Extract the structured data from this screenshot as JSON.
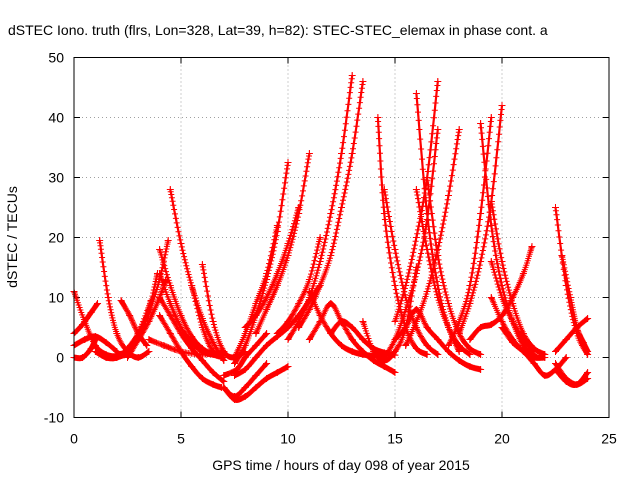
{
  "chart_data": {
    "type": "scatter",
    "title": "dSTEC Iono. truth (flrs, Lon=328, Lat=39, h=82): STEC-STEC_elemax in phase cont. a",
    "xlabel": "GPS time / hours of day 098 of year 2015",
    "ylabel": "dSTEC  / TECUs",
    "xlim": [
      0,
      25
    ],
    "ylim": [
      -10,
      50
    ],
    "xticks": [
      0,
      5,
      10,
      15,
      20,
      25
    ],
    "yticks": [
      -10,
      0,
      10,
      20,
      30,
      40,
      50
    ],
    "xtick_labels": [
      "0",
      "5",
      "10",
      "15",
      "20",
      "25"
    ],
    "ytick_labels": [
      "-10",
      "0",
      "10",
      "20",
      "30",
      "40",
      "50"
    ],
    "grid": true,
    "marker": "plus",
    "color": "#ff0000",
    "series": [
      {
        "x": [
          0.0,
          0.5,
          1.0,
          1.5,
          2.0,
          2.5
        ],
        "y": [
          11,
          6,
          2,
          0.5,
          0.2,
          0.5
        ]
      },
      {
        "x": [
          0.0,
          0.4,
          0.8,
          1.1
        ],
        "y": [
          4,
          5.5,
          7.5,
          9
        ]
      },
      {
        "x": [
          0.0,
          0.5,
          1.0,
          1.5,
          2.0
        ],
        "y": [
          2,
          3,
          3.5,
          2.5,
          1
        ]
      },
      {
        "x": [
          1.2,
          1.6,
          2.0,
          2.5,
          3.0,
          3.5
        ],
        "y": [
          19.5,
          10,
          4,
          1,
          0,
          1
        ]
      },
      {
        "x": [
          0.0,
          0.4,
          0.8,
          1.0
        ],
        "y": [
          0,
          0,
          1.5,
          3
        ]
      },
      {
        "x": [
          1.0,
          1.5,
          2.0,
          2.5,
          3.0,
          3.6
        ],
        "y": [
          1,
          0,
          0,
          1,
          4,
          9.5
        ]
      },
      {
        "x": [
          1.5,
          2.0,
          2.5,
          3.0,
          3.5,
          3.9
        ],
        "y": [
          0,
          0,
          1.5,
          4,
          8,
          14
        ]
      },
      {
        "x": [
          2.2,
          2.6,
          3.0,
          3.4
        ],
        "y": [
          9.5,
          7,
          4,
          2
        ]
      },
      {
        "x": [
          2.0,
          2.5,
          3.0,
          3.5,
          4.0,
          4.3
        ],
        "y": [
          0.5,
          1,
          3,
          6,
          10,
          13
        ]
      },
      {
        "x": [
          2.5,
          3.0,
          3.5,
          4.0,
          4.4
        ],
        "y": [
          0,
          3,
          7.5,
          13,
          19.5
        ]
      },
      {
        "x": [
          4.0,
          4.5,
          5.0,
          5.5,
          6.0,
          6.5,
          7.0
        ],
        "y": [
          14,
          9,
          5,
          2.5,
          1,
          0.5,
          0.8
        ]
      },
      {
        "x": [
          4.0,
          4.5,
          5.0,
          5.5,
          6.0,
          6.5,
          7.0
        ],
        "y": [
          18,
          12,
          7,
          3.5,
          1.5,
          0.5,
          0
        ]
      },
      {
        "x": [
          4.0,
          4.5,
          5.0,
          5.5,
          6.0,
          6.5,
          7.0
        ],
        "y": [
          10,
          7,
          4,
          1.5,
          -0.5,
          -2.5,
          -4
        ]
      },
      {
        "x": [
          4.0,
          4.5,
          5.0,
          5.5,
          6.0,
          6.5,
          6.9
        ],
        "y": [
          7,
          4,
          1,
          -1.5,
          -3.5,
          -4.5,
          -5
        ]
      },
      {
        "x": [
          4.5,
          5.0,
          5.5,
          6.0,
          6.5,
          7.0
        ],
        "y": [
          28,
          19,
          12,
          6.5,
          2.5,
          -0.5
        ]
      },
      {
        "x": [
          5.5,
          6.0,
          6.5,
          7.0
        ],
        "y": [
          12,
          5,
          1,
          0.3
        ]
      },
      {
        "x": [
          6.0,
          6.5,
          7.0,
          7.5,
          8.0
        ],
        "y": [
          15.5,
          6,
          1,
          0,
          1
        ]
      },
      {
        "x": [
          3.5,
          4.2,
          5.0,
          6.0,
          7.0
        ],
        "y": [
          3,
          2,
          1,
          0.5,
          1
        ]
      },
      {
        "x": [
          7.0,
          7.5,
          8.0,
          8.5,
          9.0
        ],
        "y": [
          -5,
          -6.5,
          -5,
          -3,
          -1
        ]
      },
      {
        "x": [
          7.0,
          7.6,
          8.0,
          8.5,
          9.0
        ],
        "y": [
          -3,
          -2,
          0,
          2,
          4
        ]
      },
      {
        "x": [
          7.0,
          7.5,
          8.0,
          8.5,
          9.0,
          9.5,
          10.0
        ],
        "y": [
          -5,
          -7,
          -6.5,
          -5,
          -3.5,
          -2.5,
          -1.5
        ]
      },
      {
        "x": [
          7.5,
          8.0,
          8.5,
          9.0,
          9.5,
          10.0,
          10.5,
          11.0,
          11.5
        ],
        "y": [
          -3,
          -2,
          0,
          2,
          3.5,
          5,
          7,
          9.5,
          12
        ]
      },
      {
        "x": [
          7.5,
          8.0,
          8.5,
          9.0,
          9.5,
          10.0
        ],
        "y": [
          -1,
          2,
          7,
          13,
          21,
          32.5
        ]
      },
      {
        "x": [
          7.5,
          8.0,
          8.5,
          9.0,
          9.5
        ],
        "y": [
          0,
          4,
          9,
          14,
          22
        ]
      },
      {
        "x": [
          8.0,
          8.5,
          9.0,
          9.5,
          10.0,
          10.5
        ],
        "y": [
          5,
          7,
          10,
          14,
          19,
          25
        ]
      },
      {
        "x": [
          8.5,
          9.0,
          9.5,
          10.0,
          10.5,
          11.0
        ],
        "y": [
          4,
          8,
          12,
          17,
          24,
          34
        ]
      },
      {
        "x": [
          9.5,
          10.0,
          10.5,
          11.0,
          11.5
        ],
        "y": [
          4,
          6,
          9,
          13,
          20
        ]
      },
      {
        "x": [
          10.0,
          10.5,
          11.0,
          11.5,
          12.0,
          12.5,
          13.0
        ],
        "y": [
          3,
          6,
          10,
          16,
          24,
          34,
          47
        ]
      },
      {
        "x": [
          10.5,
          11.0,
          11.5,
          12.0,
          12.5,
          13.0,
          13.5
        ],
        "y": [
          5,
          8,
          12,
          17,
          25,
          34,
          46
        ]
      },
      {
        "x": [
          11.0,
          11.5,
          12.0,
          12.5,
          13.0,
          13.5,
          14.0,
          14.5
        ],
        "y": [
          11,
          7,
          4,
          2,
          1,
          0.5,
          0.3,
          0.5
        ]
      },
      {
        "x": [
          11.0,
          11.5,
          12.0,
          12.5,
          13.0,
          13.5,
          14.0,
          14.5,
          15.0
        ],
        "y": [
          3,
          6,
          9,
          6,
          3,
          1,
          -0.5,
          -1.5,
          -2.5
        ]
      },
      {
        "x": [
          12.0,
          12.5,
          13.0,
          13.5,
          14.0,
          14.5,
          15.0
        ],
        "y": [
          4,
          6,
          5,
          3,
          1.5,
          0.8,
          0.4
        ]
      },
      {
        "x": [
          13.5,
          14.0,
          14.5,
          15.0,
          15.5,
          16.0
        ],
        "y": [
          6,
          1,
          -0.5,
          1,
          5,
          15
        ]
      },
      {
        "x": [
          14.2,
          14.5,
          15.0,
          15.5,
          16.0,
          16.5
        ],
        "y": [
          40,
          24,
          12,
          5,
          1.5,
          0.5
        ]
      },
      {
        "x": [
          14.5,
          15.0,
          15.5,
          16.0,
          16.5,
          17.0
        ],
        "y": [
          28,
          18,
          10,
          5,
          2,
          0.5
        ]
      },
      {
        "x": [
          14.5,
          15.0,
          15.5,
          16.0,
          16.5,
          17.0
        ],
        "y": [
          0,
          3,
          8,
          14,
          23,
          38
        ]
      },
      {
        "x": [
          15.0,
          15.5,
          16.0,
          16.5,
          17.0
        ],
        "y": [
          6,
          12,
          20,
          30,
          46
        ]
      },
      {
        "x": [
          15.5,
          16.0,
          16.5,
          17.0,
          17.5,
          18.0
        ],
        "y": [
          2,
          6,
          11,
          18,
          27,
          38
        ]
      },
      {
        "x": [
          16.0,
          16.5,
          17.0,
          17.5,
          18.0
        ],
        "y": [
          44,
          24,
          12,
          5,
          1
        ]
      },
      {
        "x": [
          16.0,
          16.5,
          17.0,
          17.5,
          18.0,
          18.5
        ],
        "y": [
          28,
          18,
          10,
          5,
          2,
          0.5
        ]
      },
      {
        "x": [
          16.5,
          17.0,
          17.5,
          18.0,
          18.5,
          19.0
        ],
        "y": [
          30,
          17,
          9,
          4,
          1.5,
          0.5
        ]
      },
      {
        "x": [
          15.0,
          15.5,
          16.0,
          16.5,
          17.0,
          17.5,
          18.0,
          18.5,
          19.0
        ],
        "y": [
          3,
          5,
          8,
          5,
          3,
          1,
          -0.5,
          -1.5,
          -2
        ]
      },
      {
        "x": [
          17.5,
          18.0,
          18.5,
          19.0,
          19.5
        ],
        "y": [
          2,
          6,
          12,
          24,
          40
        ]
      },
      {
        "x": [
          18.0,
          18.5,
          19.0,
          19.5,
          20.0
        ],
        "y": [
          4,
          9,
          16,
          26,
          42
        ]
      },
      {
        "x": [
          19.0,
          19.5,
          20.0,
          20.5,
          21.0,
          21.5
        ],
        "y": [
          39,
          22,
          12,
          6,
          2,
          0.5
        ]
      },
      {
        "x": [
          19.5,
          20.0,
          20.5,
          21.0,
          21.5,
          22.0
        ],
        "y": [
          26,
          16,
          9,
          4,
          1.5,
          0.5
        ]
      },
      {
        "x": [
          19.5,
          20.0,
          20.5,
          21.0,
          21.5
        ],
        "y": [
          16,
          10,
          6,
          3,
          1
        ]
      },
      {
        "x": [
          19.5,
          20.0,
          20.5,
          21.0,
          21.5,
          22.0
        ],
        "y": [
          10,
          6,
          3,
          1,
          0,
          0
        ]
      },
      {
        "x": [
          18.5,
          19.0,
          19.5,
          20.0,
          20.5,
          21.0,
          21.4
        ],
        "y": [
          3,
          5,
          5.5,
          7,
          10,
          14,
          18.5
        ]
      },
      {
        "x": [
          20.0,
          20.5,
          21.0,
          21.5,
          22.0,
          22.5,
          23.0
        ],
        "y": [
          5,
          2.5,
          1,
          -1,
          -3,
          -2,
          0
        ]
      },
      {
        "x": [
          22.5,
          23.0,
          23.5,
          24.0
        ],
        "y": [
          25,
          12,
          4,
          0.5
        ]
      },
      {
        "x": [
          22.5,
          23.0,
          23.5,
          24.0
        ],
        "y": [
          -1,
          -3.5,
          -4.5,
          -3.5
        ]
      },
      {
        "x": [
          22.5,
          23.0,
          23.5,
          24.0
        ],
        "y": [
          1,
          3,
          5,
          6.5
        ]
      },
      {
        "x": [
          22.8,
          23.2,
          23.5,
          23.8,
          24.0
        ],
        "y": [
          17,
          10,
          5,
          2.5,
          1
        ]
      },
      {
        "x": [
          22.5,
          23.0,
          23.5,
          24.0
        ],
        "y": [
          -2,
          -4,
          -4.5,
          -2.5
        ]
      }
    ]
  }
}
